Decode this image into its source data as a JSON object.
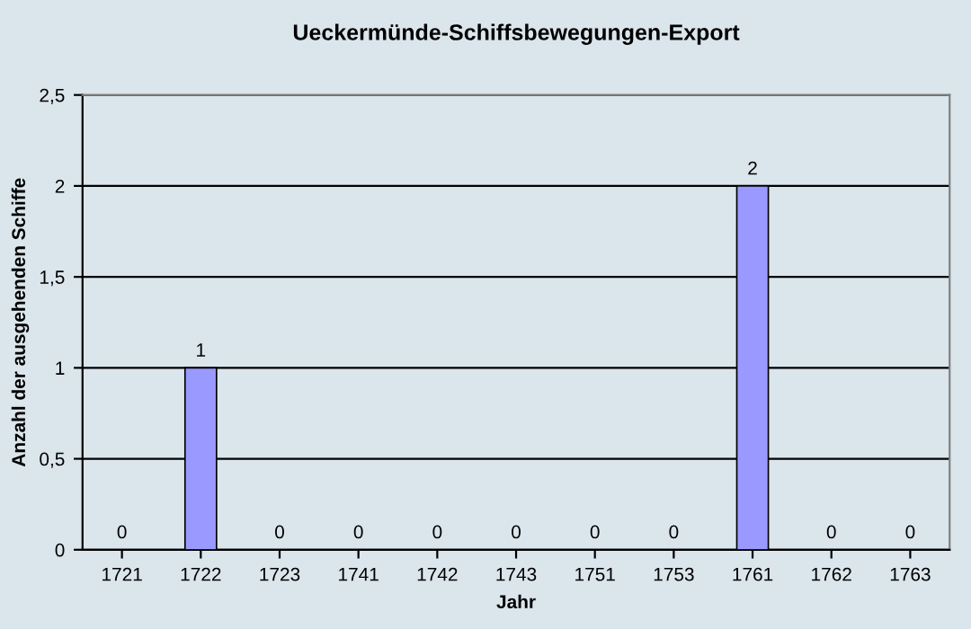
{
  "chart_data": {
    "type": "bar",
    "title": "Ueckermünde-Schiffsbewegungen-Export",
    "xlabel": "Jahr",
    "ylabel": "Anzahl der ausgehenden Schiffe",
    "categories": [
      "1721",
      "1722",
      "1723",
      "1741",
      "1742",
      "1743",
      "1751",
      "1753",
      "1761",
      "1762",
      "1763"
    ],
    "values": [
      0,
      1,
      0,
      0,
      0,
      0,
      0,
      0,
      2,
      0,
      0
    ],
    "color": "#9999ff",
    "ylim": [
      0,
      2.5
    ],
    "yticks": [
      0,
      {
        "value": 0.5,
        "label": "0,5"
      },
      1,
      {
        "value": 1.5,
        "label": "1,5"
      },
      2,
      {
        "value": 2.5,
        "label": "2,5"
      }
    ],
    "grid": "y",
    "data_labels": true
  }
}
